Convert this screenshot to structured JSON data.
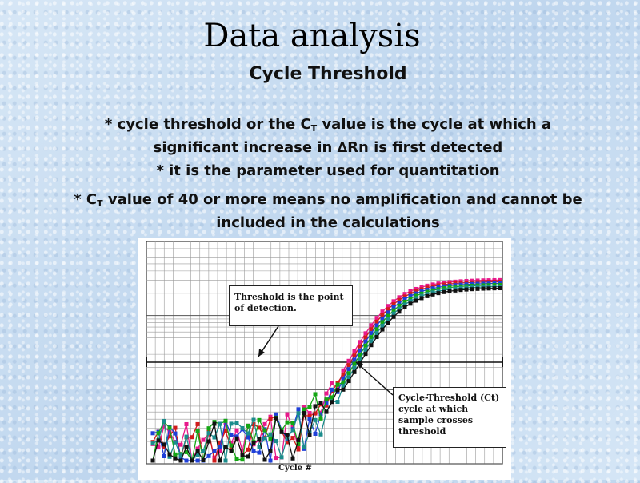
{
  "slide": {
    "title": "Data analysis",
    "subtitle": "Cycle Threshold",
    "bullets": [
      {
        "prefix": "* cycle threshold or the C",
        "sub": "T",
        "suffix": " value is the cycle at which a significant increase in ∆Rn is first detected"
      },
      {
        "text": "* it is the parameter used for quantitation"
      },
      {
        "prefix": "* C",
        "sub": "T",
        "suffix": " value of 40 or more means no amplification and cannot be included in the calculations"
      }
    ]
  },
  "chart_data": {
    "type": "scatter",
    "title": "",
    "xlabel": "Cycle #",
    "ylabel": "",
    "y_scale": "log",
    "grid": true,
    "annotations": [
      {
        "name": "threshold-callout",
        "text": "Threshold is the point of detection."
      },
      {
        "name": "ct-callout",
        "text": "Cycle-Threshold (Ct) cycle at which sample crosses threshold"
      }
    ],
    "threshold": {
      "label": "Threshold is the point of detection."
    },
    "series": [
      {
        "color": "#e8198b",
        "marker": "square"
      },
      {
        "color": "#d11b1b",
        "marker": "square"
      },
      {
        "color": "#1e3fd8",
        "marker": "square"
      },
      {
        "color": "#14a614",
        "marker": "square"
      },
      {
        "color": "#1b8c8c",
        "marker": "square"
      },
      {
        "color": "#111111",
        "marker": "square"
      }
    ]
  }
}
